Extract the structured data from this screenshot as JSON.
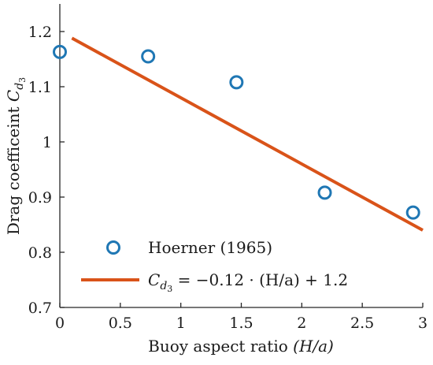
{
  "chart_data": {
    "type": "scatter",
    "xlabel": "Buoy aspect ratio (H/a)",
    "ylabel": "Drag coefficeint C_d3",
    "xlim": [
      0,
      3
    ],
    "ylim": [
      0.7,
      1.25
    ],
    "x_ticks": [
      0,
      0.5,
      1,
      1.5,
      2,
      2.5,
      3
    ],
    "x_tick_labels": [
      "0",
      "0.5",
      "1",
      "1.5",
      "2",
      "2.5",
      "3"
    ],
    "y_ticks": [
      0.7,
      0.8,
      0.9,
      1.0,
      1.1,
      1.2
    ],
    "y_tick_labels": [
      "0.7",
      "0.8",
      "0.9",
      "1",
      "1.1",
      "1.2"
    ],
    "grid": false,
    "legend_position": "bottom-left",
    "series": [
      {
        "name": "Hoerner (1965)",
        "kind": "scatter",
        "marker": "open-circle",
        "color": "#1f77b4",
        "x": [
          0.0,
          0.73,
          1.46,
          2.19,
          2.92
        ],
        "y": [
          1.163,
          1.155,
          1.108,
          0.908,
          0.872
        ]
      },
      {
        "name": "C_d3 = -0.12 · (H/a) + 1.2",
        "kind": "line",
        "color": "#d95319",
        "slope": -0.12,
        "intercept": 1.2,
        "x": [
          0.1,
          3.0
        ],
        "y": [
          1.188,
          0.84
        ]
      }
    ]
  },
  "labels": {
    "xlabel_main": "Buoy aspect ratio ",
    "xlabel_math": "(H/a)",
    "ylabel_main": "Drag coefficeint ",
    "ylabel_C": "C",
    "ylabel_sub": "d",
    "ylabel_subsub": "3",
    "legend_1": "Hoerner (1965)",
    "legend_2_C": "C",
    "legend_2_sub": "d",
    "legend_2_subsub": "3",
    "legend_2_rest": " = −0.12 · (H/a) + 1.2"
  }
}
